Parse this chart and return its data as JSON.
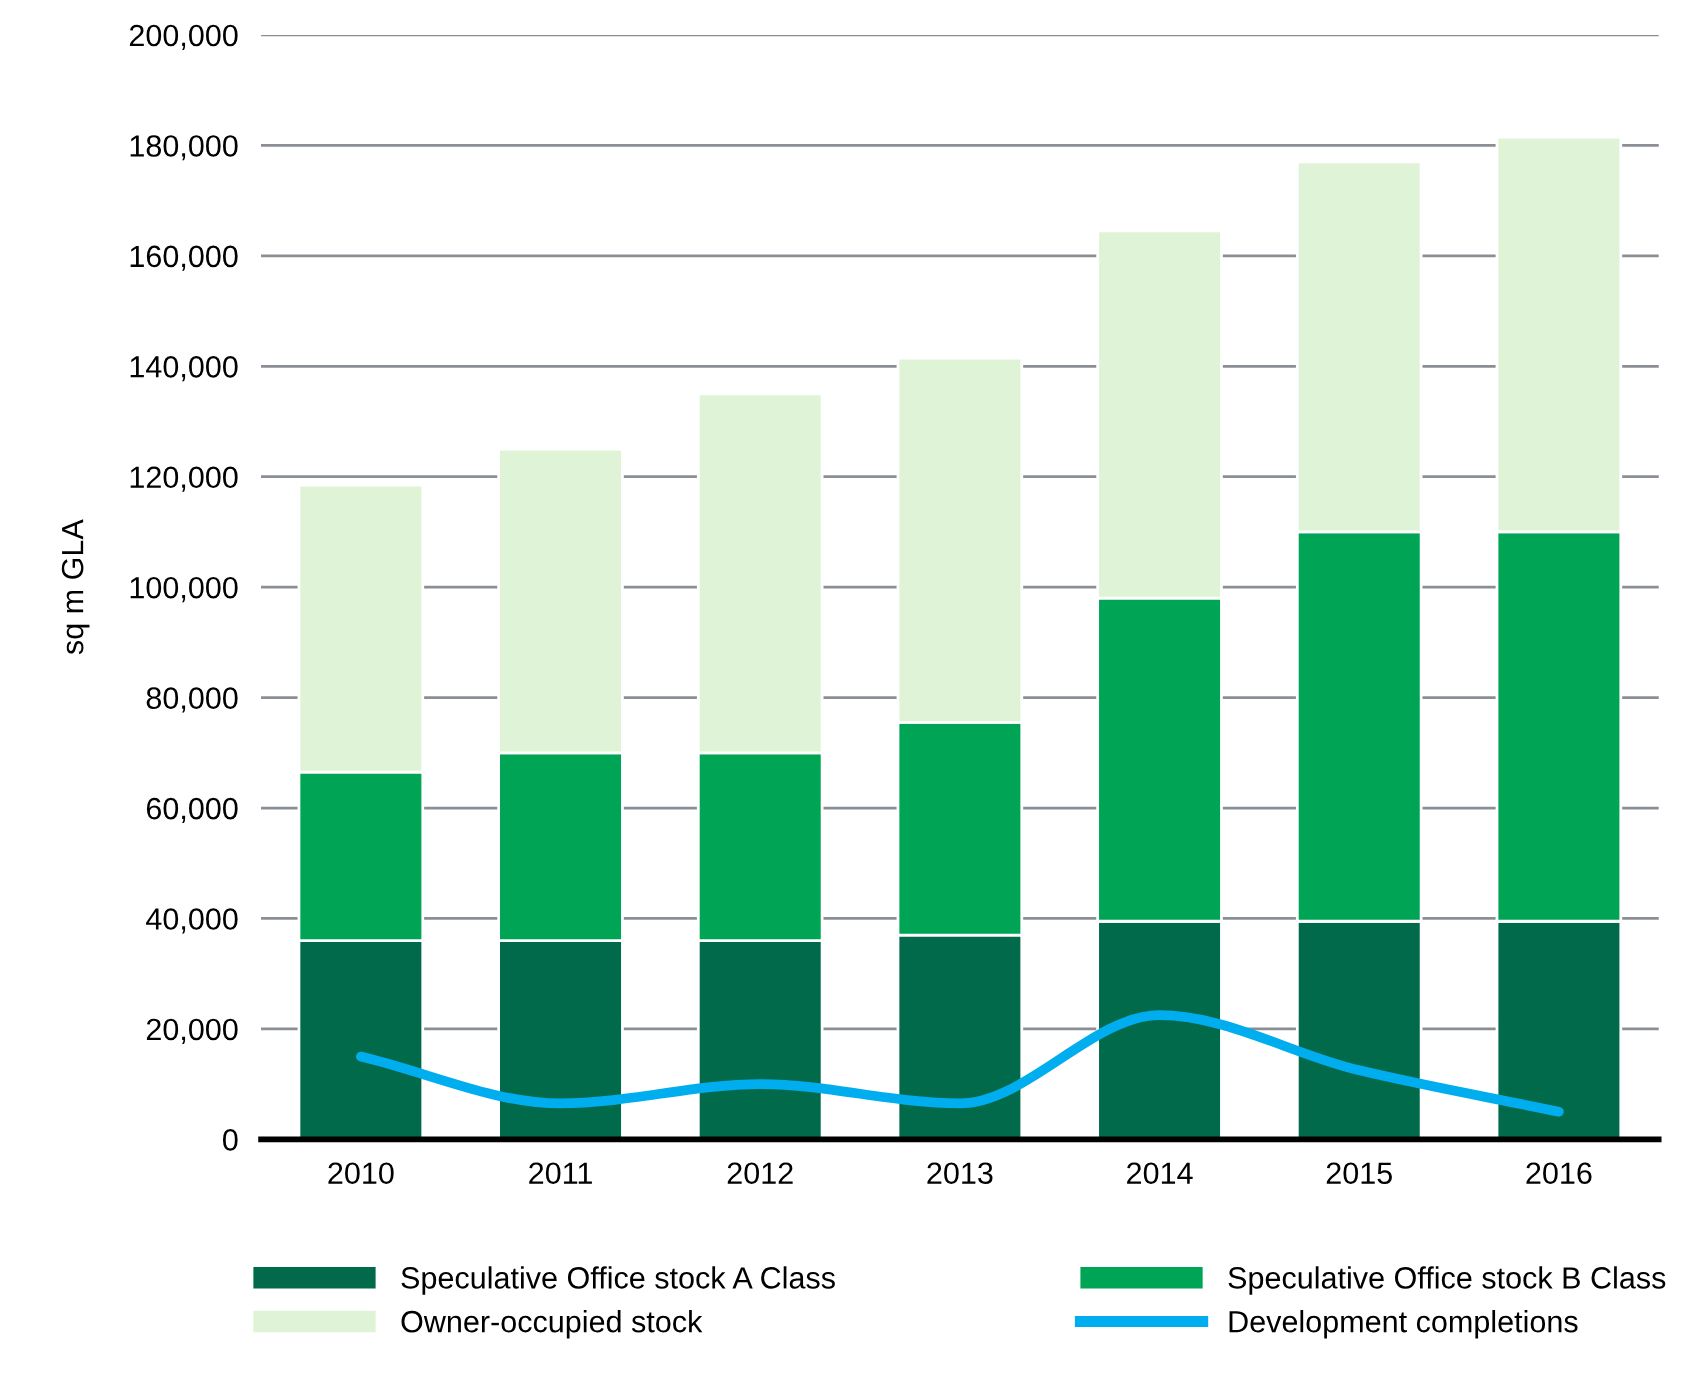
{
  "chart_data": {
    "type": "bar",
    "stacked": true,
    "ylabel": "sq m GLA",
    "categories": [
      "2010",
      "2011",
      "2012",
      "2013",
      "2014",
      "2015",
      "2016"
    ],
    "series": [
      {
        "name": "Speculative Office stock A Class",
        "color": "#006a4a",
        "values": [
          36000,
          36000,
          36000,
          37000,
          39500,
          39500,
          39500
        ]
      },
      {
        "name": "Speculative Office stock B Class",
        "color": "#00a455",
        "values": [
          30500,
          34000,
          34000,
          38500,
          58500,
          70500,
          70500
        ]
      },
      {
        "name": "Owner-occupied stock",
        "color": "#dff4d6",
        "values": [
          52000,
          55000,
          65000,
          66000,
          66500,
          67000,
          71500
        ]
      },
      {
        "name": "Development completions",
        "type": "line",
        "color": "#00aeef",
        "values": [
          15000,
          6500,
          10000,
          6500,
          22500,
          12500,
          5000
        ]
      }
    ],
    "ylim": [
      0,
      200000
    ],
    "yticks": [
      {
        "value": 0,
        "label": "0"
      },
      {
        "value": 20000,
        "label": "20,000"
      },
      {
        "value": 40000,
        "label": "40,000"
      },
      {
        "value": 60000,
        "label": "60,000"
      },
      {
        "value": 80000,
        "label": "80,000"
      },
      {
        "value": 100000,
        "label": "100,000"
      },
      {
        "value": 120000,
        "label": "120,000"
      },
      {
        "value": 140000,
        "label": "140,000"
      },
      {
        "value": 160000,
        "label": "160,000"
      },
      {
        "value": 180000,
        "label": "180,000"
      },
      {
        "value": 200000,
        "label": "200,000"
      }
    ],
    "grid": "y",
    "legend": "bottom",
    "marker": "none",
    "line_style": "solid"
  }
}
